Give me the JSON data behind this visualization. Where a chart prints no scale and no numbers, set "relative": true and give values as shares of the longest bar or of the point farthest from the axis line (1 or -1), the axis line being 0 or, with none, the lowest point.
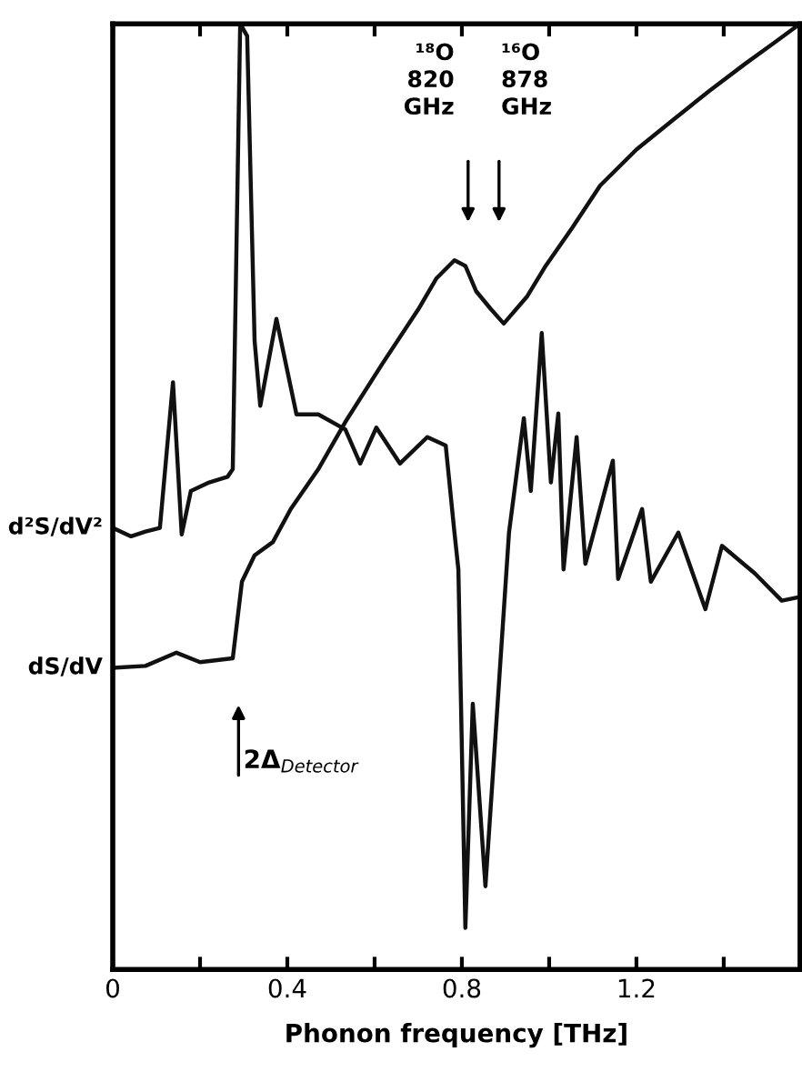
{
  "chart_data": {
    "type": "line",
    "relative": true,
    "xlabel": "Phonon frequency [THz]",
    "xlim": [
      0,
      1.575
    ],
    "xticks": [
      0,
      {
        "value": 0.2,
        "label": null
      },
      0.4,
      {
        "value": 0.6,
        "label": null
      },
      0.8,
      {
        "value": 1.0,
        "label": null
      },
      1.2,
      {
        "value": 1.4,
        "label": null
      }
    ],
    "tick_labels": "x",
    "grid": false,
    "marker": "none",
    "line_style": "solid",
    "series": [
      {
        "name": "d²S/dV²",
        "color": "#111111",
        "x": [
          0,
          0.042,
          0.075,
          0.108,
          0.138,
          0.158,
          0.179,
          0.221,
          0.263,
          0.275,
          0.292,
          0.308,
          0.325,
          0.338,
          0.375,
          0.421,
          0.471,
          0.533,
          0.567,
          0.604,
          0.658,
          0.721,
          0.763,
          0.783,
          0.792,
          0.808,
          0.825,
          0.854,
          0.908,
          0.942,
          0.958,
          0.983,
          1.004,
          1.021,
          1.033,
          1.063,
          1.083,
          1.146,
          1.158,
          1.213,
          1.233,
          1.296,
          1.358,
          1.396,
          1.471,
          1.533,
          1.575
        ],
        "values": [
          0.467,
          0.458,
          0.463,
          0.467,
          0.621,
          0.46,
          0.506,
          0.515,
          0.521,
          0.529,
          1.0,
          0.987,
          0.665,
          0.596,
          0.688,
          0.587,
          0.587,
          0.571,
          0.535,
          0.573,
          0.535,
          0.563,
          0.554,
          0.462,
          0.423,
          0.044,
          0.281,
          0.088,
          0.462,
          0.583,
          0.506,
          0.673,
          0.515,
          0.588,
          0.423,
          0.563,
          0.429,
          0.538,
          0.413,
          0.487,
          0.41,
          0.462,
          0.381,
          0.448,
          0.419,
          0.39,
          0.394
        ]
      },
      {
        "name": "dS/dV",
        "color": "#111111",
        "x": [
          0,
          0.075,
          0.146,
          0.2,
          0.275,
          0.296,
          0.325,
          0.367,
          0.408,
          0.471,
          0.533,
          0.617,
          0.7,
          0.742,
          0.783,
          0.808,
          0.833,
          0.867,
          0.896,
          0.95,
          0.992,
          1.054,
          1.117,
          1.2,
          1.283,
          1.367,
          1.45,
          1.513,
          1.575
        ],
        "values": [
          0.319,
          0.321,
          0.335,
          0.325,
          0.329,
          0.41,
          0.438,
          0.452,
          0.487,
          0.529,
          0.579,
          0.64,
          0.698,
          0.731,
          0.75,
          0.744,
          0.717,
          0.698,
          0.683,
          0.712,
          0.744,
          0.785,
          0.829,
          0.867,
          0.898,
          0.929,
          0.958,
          0.979,
          1.0
        ]
      }
    ],
    "annotations": [
      "¹⁸O\n820\nGHz",
      "¹⁶O\n878\nGHz",
      "2Δ$_{Detector}$"
    ]
  }
}
